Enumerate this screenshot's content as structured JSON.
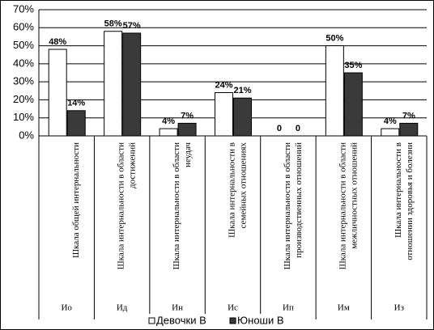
{
  "chart_data": {
    "type": "bar",
    "categories": [
      "Шкала общей интернальности",
      "Шкала интернальности в области достижений",
      "Шкала интернальности в области неудач",
      "Шкала интернальности в семейных отношениях",
      "Шкала интернальности в области производственных отношений",
      "Шкала интернальности в области межличностных отношений",
      "Шкала интернальности в отношении здоровья и болезни"
    ],
    "codes": [
      "Ио",
      "Ид",
      "Ин",
      "Ис",
      "Ип",
      "Им",
      "Из"
    ],
    "series": [
      {
        "name": "Девочки В",
        "color": "#ffffff",
        "values": [
          48,
          58,
          4,
          24,
          0,
          50,
          4
        ],
        "value_labels": [
          "48%",
          "58%",
          "4%",
          "24%",
          "0",
          "50%",
          "4%"
        ]
      },
      {
        "name": "Юноши В",
        "color": "#3a3a3a",
        "values": [
          14,
          57,
          7,
          21,
          0,
          35,
          7
        ],
        "value_labels": [
          "14%",
          "57%",
          "7%",
          "21%",
          "0",
          "35%",
          "7%"
        ]
      }
    ],
    "ylim": [
      0,
      70
    ],
    "yticks": [
      {
        "value": 0,
        "label": "0%"
      },
      {
        "value": 10,
        "label": "10%"
      },
      {
        "value": 20,
        "label": "20%"
      },
      {
        "value": 30,
        "label": "30%"
      },
      {
        "value": 40,
        "label": "40%"
      },
      {
        "value": 50,
        "label": "50%"
      },
      {
        "value": 60,
        "label": "60%"
      },
      {
        "value": 70,
        "label": "70%"
      }
    ],
    "grid": true
  }
}
